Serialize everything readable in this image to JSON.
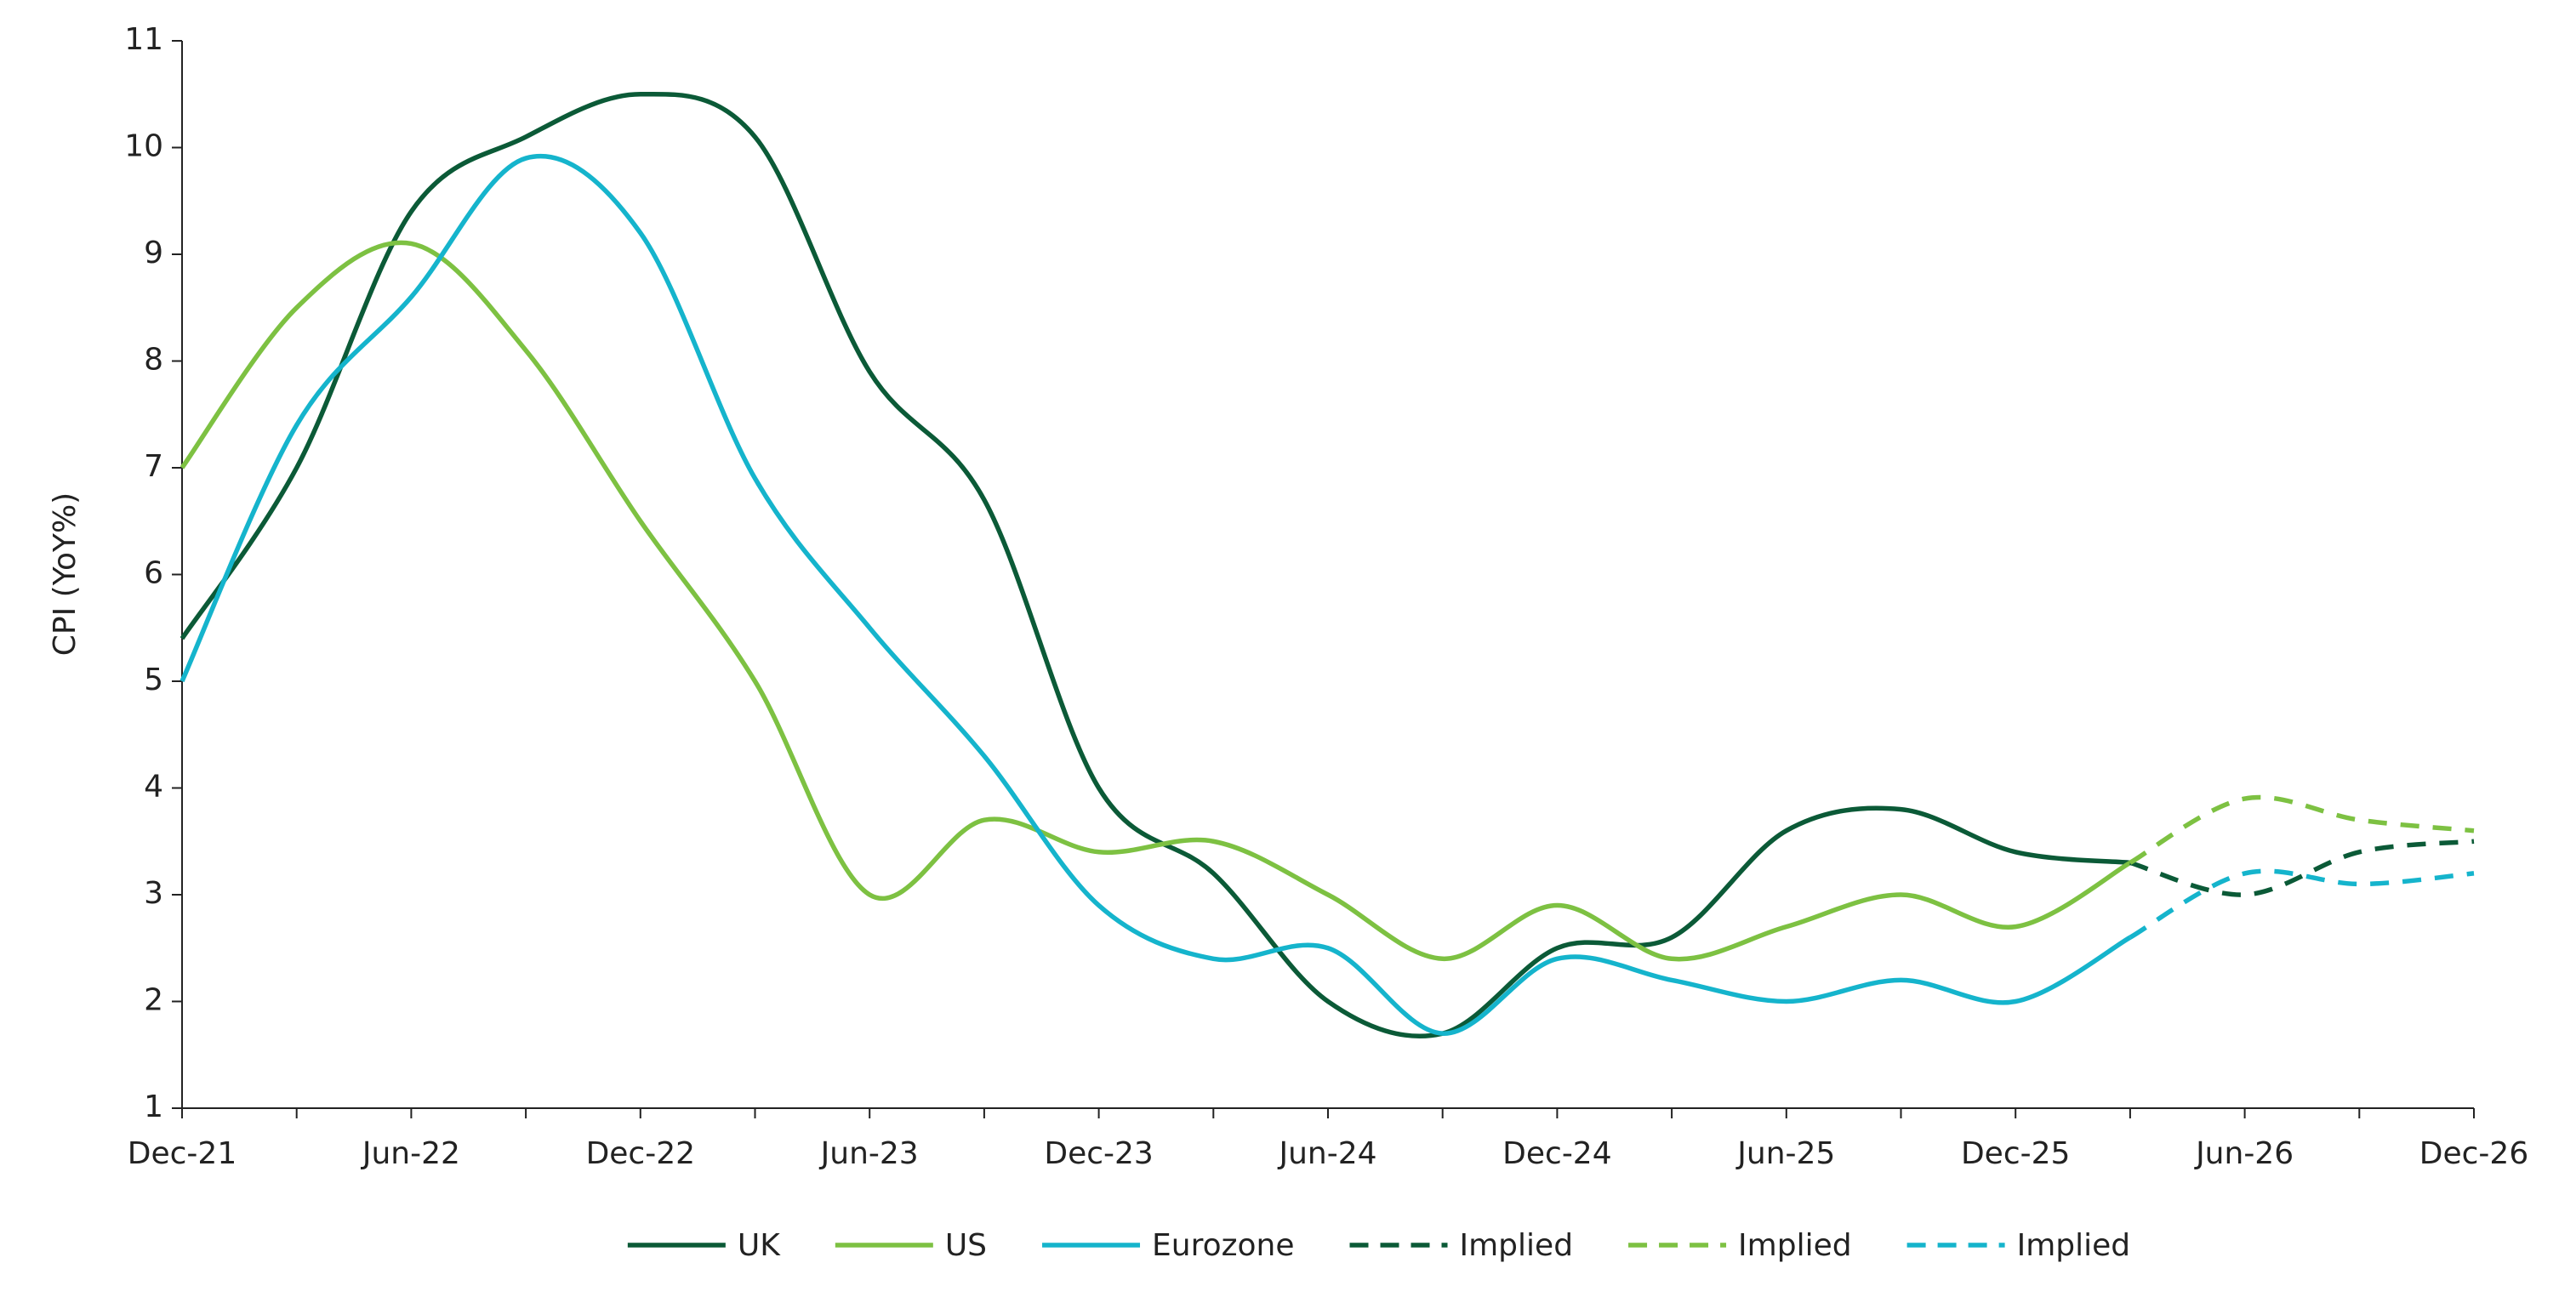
{
  "chart_data": {
    "type": "line",
    "y_label": "CPI (YoY%)",
    "categories": [
      "Dec-21",
      null,
      "Jun-22",
      null,
      "Dec-22",
      null,
      "Jun-23",
      null,
      "Dec-23",
      null,
      "Jun-24",
      null,
      "Dec-24",
      null,
      "Jun-25",
      null,
      "Dec-25",
      null,
      "Jun-26",
      null,
      "Dec-26"
    ],
    "ylim": [
      1,
      11
    ],
    "yticks": [
      1,
      2,
      3,
      4,
      5,
      6,
      7,
      8,
      9,
      10,
      11
    ],
    "grid": false,
    "legend": "bottom",
    "series": [
      {
        "name": "UK",
        "color": "#0b5a37",
        "dashed": false,
        "values": [
          5.4,
          7.0,
          9.4,
          10.1,
          10.5,
          10.1,
          7.9,
          6.7,
          4.0,
          3.2,
          2.0,
          1.7,
          2.5,
          2.6,
          3.6,
          3.8,
          3.4,
          3.3,
          null,
          null,
          null
        ]
      },
      {
        "name": "US",
        "color": "#7dc142",
        "dashed": false,
        "values": [
          7.0,
          8.5,
          9.1,
          8.1,
          6.5,
          5.0,
          3.0,
          3.7,
          3.4,
          3.5,
          3.0,
          2.4,
          2.9,
          2.4,
          2.7,
          3.0,
          2.7,
          3.3,
          null,
          null,
          null
        ]
      },
      {
        "name": "Eurozone",
        "color": "#15b4cc",
        "dashed": false,
        "values": [
          5.0,
          7.4,
          8.6,
          9.9,
          9.2,
          6.9,
          5.5,
          4.3,
          2.9,
          2.4,
          2.5,
          1.7,
          2.4,
          2.2,
          2.0,
          2.2,
          2.0,
          2.6,
          null,
          null,
          null
        ]
      },
      {
        "name": "Implied",
        "color": "#0b5a37",
        "dashed": true,
        "values": [
          null,
          null,
          null,
          null,
          null,
          null,
          null,
          null,
          null,
          null,
          null,
          null,
          null,
          null,
          null,
          null,
          null,
          3.3,
          3.0,
          3.4,
          3.5
        ]
      },
      {
        "name": "Implied",
        "color": "#7dc142",
        "dashed": true,
        "values": [
          null,
          null,
          null,
          null,
          null,
          null,
          null,
          null,
          null,
          null,
          null,
          null,
          null,
          null,
          null,
          null,
          null,
          3.3,
          3.9,
          3.7,
          3.6
        ]
      },
      {
        "name": "Implied",
        "color": "#15b4cc",
        "dashed": true,
        "values": [
          null,
          null,
          null,
          null,
          null,
          null,
          null,
          null,
          null,
          null,
          null,
          null,
          null,
          null,
          null,
          null,
          null,
          2.6,
          3.2,
          3.1,
          3.2
        ]
      }
    ]
  }
}
